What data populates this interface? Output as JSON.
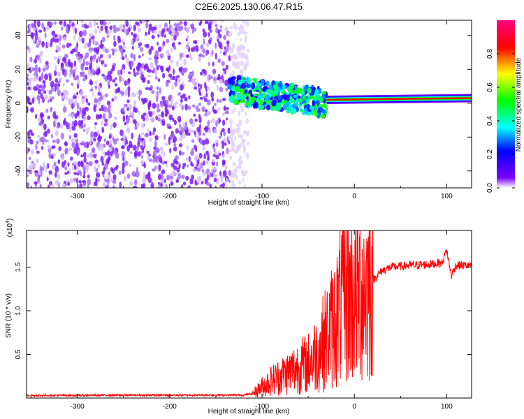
{
  "title": "C2E6.2025.130.06.47.R15",
  "chart_data": [
    {
      "type": "heatmap",
      "name": "spectrogram",
      "xlabel": "Height of straight line (km)",
      "ylabel": "Frequency (Hz)",
      "xlim": [
        -355,
        127
      ],
      "ylim": [
        -50,
        49
      ],
      "xticks": [
        -300,
        -200,
        -100,
        0,
        100
      ],
      "xtick_labels": [
        "-300",
        "-200",
        "-100",
        "0",
        "100"
      ],
      "yticks": [
        -40,
        -20,
        0,
        20,
        40
      ],
      "ytick_labels": [
        "-40",
        "-20",
        "0",
        "20",
        "40"
      ],
      "colorbar": {
        "label": "Normalized spectral amplitude",
        "range": [
          0,
          1
        ],
        "ticks": [
          0.0,
          0.2,
          0.4,
          0.6,
          0.8
        ],
        "tick_labels": [
          "0.0",
          "0.2",
          "0.4",
          "0.6",
          "0.8"
        ],
        "colormap": [
          "#ffffff",
          "#7a00ff",
          "#0000ff",
          "#00ffff",
          "#00ff00",
          "#ffff00",
          "#ff0000",
          "#ff00ff"
        ]
      },
      "regions": [
        {
          "desc": "broadband noise",
          "x_range": [
            -355,
            -135
          ],
          "freq_range": [
            -50,
            49
          ],
          "amplitude": 0.08
        },
        {
          "desc": "ridge onset",
          "x_range": [
            -135,
            -30
          ],
          "center_freq": [
            8,
            0
          ],
          "amplitude": 0.35
        },
        {
          "desc": "steady ridge",
          "x_range": [
            -30,
            127
          ],
          "center_freq": [
            2,
            3
          ],
          "amplitude": 0.85
        }
      ]
    },
    {
      "type": "line",
      "name": "snr",
      "xlabel": "Height of straight line (km)",
      "ylabel": "SNR (10 * v/v)",
      "scale_label": "(x10",
      "scale_exponent": "4",
      "scale_suffix": ")",
      "xlim": [
        -355,
        127
      ],
      "ylim": [
        0,
        19200
      ],
      "xticks": [
        -300,
        -200,
        -100,
        0,
        100
      ],
      "xtick_labels": [
        "-300",
        "-200",
        "-100",
        "0",
        "100"
      ],
      "yticks": [
        5000,
        10000,
        15000
      ],
      "ytick_labels": [
        "0.5",
        "1.0",
        "1.5"
      ],
      "series": [
        {
          "name": "SNR",
          "color": "#ff0000",
          "x": [
            -355,
            -120,
            -110,
            -100,
            -90,
            -80,
            -70,
            -60,
            -50,
            -40,
            -30,
            -20,
            -10,
            0,
            10,
            20,
            30,
            40,
            60,
            80,
            95,
            100,
            105,
            110,
            127
          ],
          "y": [
            300,
            350,
            500,
            1300,
            2000,
            2500,
            3000,
            3600,
            4000,
            5200,
            7000,
            9000,
            12000,
            11500,
            12500,
            13500,
            14600,
            15000,
            15200,
            15300,
            15500,
            17000,
            14000,
            15200,
            15200
          ]
        }
      ]
    }
  ]
}
